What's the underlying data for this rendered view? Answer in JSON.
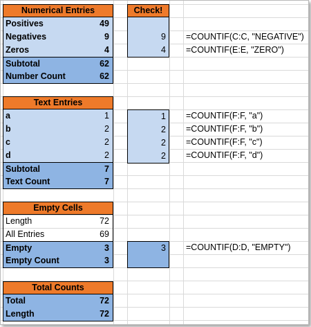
{
  "numerical": {
    "header": "Numerical Entries",
    "rows": [
      {
        "label": "Positives",
        "value": "49"
      },
      {
        "label": "Negatives",
        "value": "9"
      },
      {
        "label": "Zeros",
        "value": "4"
      },
      {
        "label": "Subtotal",
        "value": "62"
      },
      {
        "label": "Number Count",
        "value": "62"
      }
    ]
  },
  "text_entries": {
    "header": "Text Entries",
    "rows": [
      {
        "label": "a",
        "value": "1"
      },
      {
        "label": "b",
        "value": "2"
      },
      {
        "label": "c",
        "value": "2"
      },
      {
        "label": "d",
        "value": "2"
      },
      {
        "label": "Subtotal",
        "value": "7"
      },
      {
        "label": "Text Count",
        "value": "7"
      }
    ]
  },
  "empty_cells": {
    "header": "Empty Cells",
    "rows": [
      {
        "label": "Length",
        "value": "72"
      },
      {
        "label": "All Entries",
        "value": "69"
      },
      {
        "label": "Empty",
        "value": "3"
      },
      {
        "label": "Empty Count",
        "value": "3"
      }
    ]
  },
  "total_counts": {
    "header": "Total Counts",
    "rows": [
      {
        "label": "Total",
        "value": "72"
      },
      {
        "label": "Length",
        "value": "72"
      }
    ]
  },
  "check": {
    "header": "Check!",
    "numerical": [
      "",
      "9",
      "4"
    ],
    "text": [
      "1",
      "2",
      "2",
      "2"
    ],
    "empty": [
      "3"
    ]
  },
  "formulas": {
    "negative": "=COUNTIF(C:C, \"NEGATIVE\")",
    "zero": "=COUNTIF(E:E, \"ZERO\")",
    "a": "=COUNTIF(F:F, \"a\")",
    "b": "=COUNTIF(F:F, \"b\")",
    "c": "=COUNTIF(F:F, \"c\")",
    "d": "=COUNTIF(F:F, \"d\")",
    "empty": "=COUNTIF(D:D, \"EMPTY\")"
  },
  "colors": {
    "header_orange": "#ee7a2a",
    "fill_light_blue": "#c6d9f1",
    "fill_mid_blue": "#8eb4e3"
  }
}
